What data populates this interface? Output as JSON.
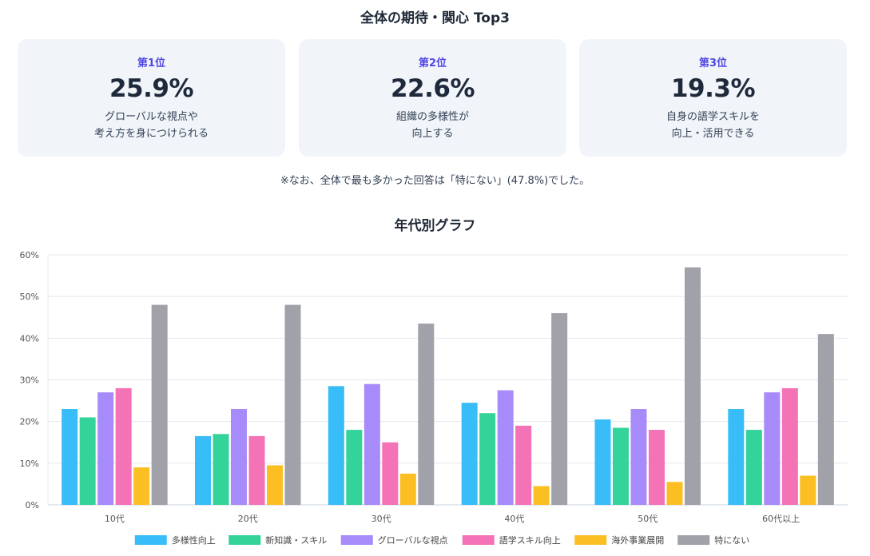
{
  "header": {
    "title": "全体の期待・関心 Top3"
  },
  "top3": [
    {
      "rank": "第1位",
      "percent": "25.9%",
      "description": "グローバルな視点や\n考え方を身につけられる"
    },
    {
      "rank": "第2位",
      "percent": "22.6%",
      "description": "組織の多様性が\n向上する"
    },
    {
      "rank": "第3位",
      "percent": "19.3%",
      "description": "自身の語学スキルを\n向上・活用できる"
    }
  ],
  "note": "※なお、全体で最も多かった回答は「特にない」(47.8%)でした。",
  "chart_title": "年代別グラフ",
  "chart_data": {
    "type": "bar",
    "title": "年代別グラフ",
    "categories": [
      "10代",
      "20代",
      "30代",
      "40代",
      "50代",
      "60代以上"
    ],
    "ylim": [
      0,
      60
    ],
    "yticks": [
      "0%",
      "10%",
      "20%",
      "30%",
      "40%",
      "50%",
      "60%"
    ],
    "ytick_values": [
      0,
      10,
      20,
      30,
      40,
      50,
      60
    ],
    "xlabel": "",
    "ylabel": "",
    "grid": true,
    "legend": "bottom",
    "series": [
      {
        "name": "多様性向上",
        "color": "#38bdf8",
        "values": [
          23,
          16.5,
          28.5,
          24.5,
          20.5,
          23
        ]
      },
      {
        "name": "新知識・スキル",
        "color": "#34d399",
        "values": [
          21,
          17,
          18,
          22,
          18.5,
          18
        ]
      },
      {
        "name": "グローバルな視点",
        "color": "#a78bfa",
        "values": [
          27,
          23,
          29,
          27.5,
          23,
          27
        ]
      },
      {
        "name": "語学スキル向上",
        "color": "#f472b6",
        "values": [
          28,
          16.5,
          15,
          19,
          18,
          28
        ]
      },
      {
        "name": "海外事業展開",
        "color": "#fbbf24",
        "values": [
          9,
          9.5,
          7.5,
          4.5,
          5.5,
          7
        ]
      },
      {
        "name": "特にない",
        "color": "#a1a1aa",
        "values": [
          48,
          48,
          43.5,
          46,
          57,
          41
        ]
      }
    ]
  }
}
